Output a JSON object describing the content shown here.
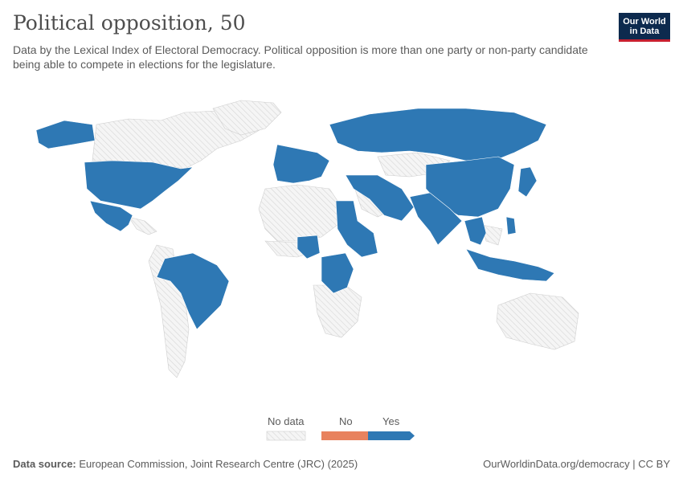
{
  "header": {
    "title": "Political opposition, 50",
    "subtitle": "Data by the Lexical Index of Electoral Democracy. Political opposition is more than one party or non-party candidate being able to compete in elections for the legislature."
  },
  "logo": {
    "line1": "Our World",
    "line2": "in Data"
  },
  "legend": {
    "no_data_label": "No data",
    "no_label": "No",
    "yes_label": "Yes",
    "colors": {
      "yes": "#2e78b4",
      "no": "#e8825e",
      "no_data": "#f2f2f2"
    }
  },
  "map": {
    "yes_regions": [
      "United States",
      "Mexico",
      "Brazil",
      "Western Europe",
      "Russia",
      "Turkey",
      "Iran",
      "Pakistan",
      "India",
      "China",
      "Japan",
      "Indonesia",
      "Philippines",
      "Sudan",
      "Ethiopia",
      "Nigeria",
      "Congo (DRC)",
      "Mongolia"
    ],
    "no_regions": [],
    "icons": [
      "map-icon"
    ]
  },
  "footer": {
    "source_label": "Data source:",
    "source_text": "European Commission, Joint Research Centre (JRC) (2025)",
    "url": "OurWorldinData.org/democracy | CC BY"
  }
}
